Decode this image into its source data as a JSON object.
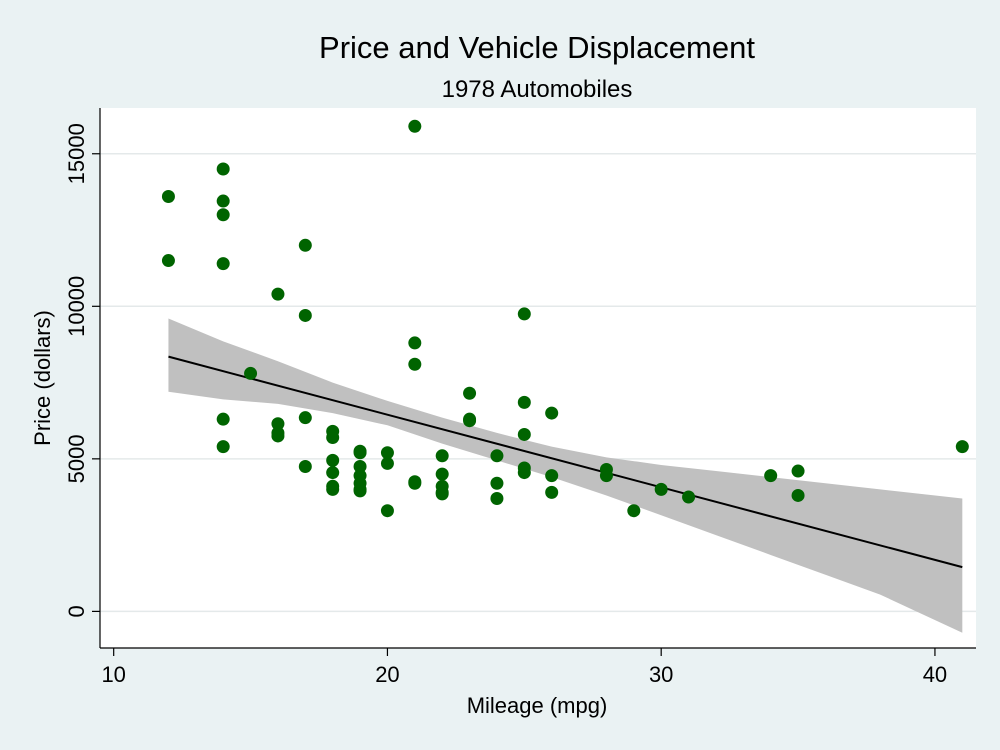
{
  "chart_data": {
    "type": "scatter",
    "title": "Price and Vehicle Displacement",
    "subtitle": "1978 Automobiles",
    "xlabel": "Mileage (mpg)",
    "ylabel": "Price (dollars)",
    "xlim": [
      9.5,
      41.5
    ],
    "ylim": [
      -1200,
      16500
    ],
    "xticks": [
      10,
      20,
      30,
      40
    ],
    "yticks": [
      0,
      5000,
      10000,
      15000
    ],
    "grid": "horizontal",
    "colors": {
      "points": "#006400",
      "band": "#c0c0c0",
      "line": "#000000",
      "background": "#eaf2f3",
      "plot": "#ffffff"
    },
    "points": [
      [
        12,
        13600
      ],
      [
        12,
        11500
      ],
      [
        14,
        14500
      ],
      [
        14,
        13450
      ],
      [
        14,
        13000
      ],
      [
        14,
        11400
      ],
      [
        14,
        6300
      ],
      [
        14,
        5400
      ],
      [
        15,
        7800
      ],
      [
        16,
        10400
      ],
      [
        16,
        6150
      ],
      [
        16,
        5850
      ],
      [
        16,
        5750
      ],
      [
        17,
        12000
      ],
      [
        17,
        9700
      ],
      [
        17,
        6350
      ],
      [
        17,
        4750
      ],
      [
        18,
        5900
      ],
      [
        18,
        5700
      ],
      [
        18,
        4950
      ],
      [
        18,
        4550
      ],
      [
        18,
        4100
      ],
      [
        18,
        4000
      ],
      [
        19,
        5250
      ],
      [
        19,
        5200
      ],
      [
        19,
        4750
      ],
      [
        19,
        4450
      ],
      [
        19,
        4200
      ],
      [
        19,
        4000
      ],
      [
        19,
        3950
      ],
      [
        20,
        5200
      ],
      [
        20,
        4850
      ],
      [
        20,
        3300
      ],
      [
        21,
        15900
      ],
      [
        21,
        8800
      ],
      [
        21,
        8100
      ],
      [
        21,
        4250
      ],
      [
        21,
        4200
      ],
      [
        22,
        5100
      ],
      [
        22,
        4500
      ],
      [
        22,
        4100
      ],
      [
        22,
        3900
      ],
      [
        22,
        3850
      ],
      [
        23,
        7150
      ],
      [
        23,
        6300
      ],
      [
        23,
        6250
      ],
      [
        24,
        5100
      ],
      [
        24,
        4200
      ],
      [
        24,
        3700
      ],
      [
        25,
        9750
      ],
      [
        25,
        6850
      ],
      [
        25,
        5800
      ],
      [
        25,
        4700
      ],
      [
        25,
        4550
      ],
      [
        26,
        6500
      ],
      [
        26,
        4450
      ],
      [
        26,
        3900
      ],
      [
        28,
        4650
      ],
      [
        28,
        4450
      ],
      [
        29,
        3300
      ],
      [
        30,
        4000
      ],
      [
        31,
        3750
      ],
      [
        34,
        4450
      ],
      [
        35,
        4600
      ],
      [
        35,
        3800
      ],
      [
        41,
        5400
      ]
    ],
    "fit": {
      "x": [
        12,
        41
      ],
      "y": [
        8350,
        1450
      ]
    },
    "ci": {
      "x": [
        12,
        14,
        16,
        18,
        20,
        22,
        24,
        26,
        28,
        30,
        32,
        34,
        36,
        38,
        41
      ],
      "upper": [
        9600,
        8850,
        8200,
        7500,
        6900,
        6350,
        5850,
        5400,
        5050,
        4800,
        4600,
        4400,
        4200,
        4000,
        3700
      ],
      "lower": [
        7200,
        6950,
        6800,
        6500,
        6100,
        5500,
        4950,
        4400,
        3800,
        3150,
        2500,
        1850,
        1200,
        550,
        -700
      ]
    }
  }
}
